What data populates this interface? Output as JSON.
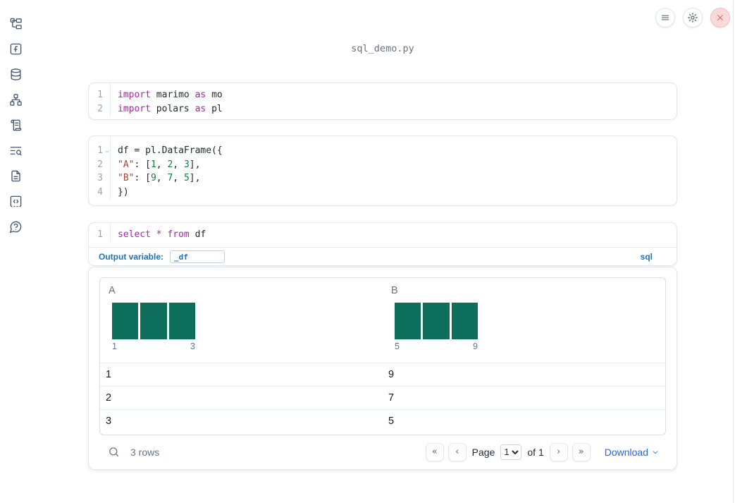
{
  "title": "sql_demo.py",
  "colors": {
    "keyword": "#a626a4",
    "string": "#a94432",
    "number": "#15803d",
    "histogram_bar": "#0e6e5c",
    "accent_blue": "#2270b8",
    "link_blue": "#2563eb"
  },
  "sidebar": {
    "items": [
      {
        "name": "file-explorer",
        "icon": "file-tree-icon"
      },
      {
        "name": "variables",
        "icon": "function-square-icon"
      },
      {
        "name": "datasources",
        "icon": "database-icon"
      },
      {
        "name": "dependencies",
        "icon": "network-graph-icon"
      },
      {
        "name": "logs",
        "icon": "scroll-icon"
      },
      {
        "name": "outline-search",
        "icon": "text-search-icon"
      },
      {
        "name": "documentation",
        "icon": "file-text-icon"
      },
      {
        "name": "snippets",
        "icon": "code-square-icon"
      },
      {
        "name": "help",
        "icon": "help-bubble-icon"
      }
    ]
  },
  "header_controls": [
    {
      "name": "menu",
      "icon": "hamburger-icon"
    },
    {
      "name": "settings",
      "icon": "gear-icon"
    },
    {
      "name": "shutdown",
      "icon": "close-x-icon"
    }
  ],
  "cells": [
    {
      "name": "cell-imports",
      "lines": [
        {
          "n": "1",
          "tokens": [
            [
              "kw",
              "import"
            ],
            [
              "pl",
              " marimo "
            ],
            [
              "kw",
              "as"
            ],
            [
              "pl",
              " mo"
            ]
          ]
        },
        {
          "n": "2",
          "tokens": [
            [
              "kw",
              "import"
            ],
            [
              "pl",
              " polars "
            ],
            [
              "kw",
              "as"
            ],
            [
              "pl",
              " pl"
            ]
          ]
        }
      ]
    },
    {
      "name": "cell-dataframe",
      "lines": [
        {
          "n": "1",
          "fold": true,
          "tokens": [
            [
              "pl",
              "df = pl.DataFrame({"
            ]
          ]
        },
        {
          "n": "2",
          "tokens": [
            [
              "pl",
              "    "
            ],
            [
              "str",
              "\"A\""
            ],
            [
              "pl",
              ": ["
            ],
            [
              "num",
              "1"
            ],
            [
              "pl",
              ", "
            ],
            [
              "num",
              "2"
            ],
            [
              "pl",
              ", "
            ],
            [
              "num",
              "3"
            ],
            [
              "pl",
              "],"
            ]
          ]
        },
        {
          "n": "3",
          "tokens": [
            [
              "pl",
              "    "
            ],
            [
              "str",
              "\"B\""
            ],
            [
              "pl",
              ": ["
            ],
            [
              "num",
              "9"
            ],
            [
              "pl",
              ", "
            ],
            [
              "num",
              "7"
            ],
            [
              "pl",
              ", "
            ],
            [
              "num",
              "5"
            ],
            [
              "pl",
              "],"
            ]
          ]
        },
        {
          "n": "4",
          "tokens": [
            [
              "pl",
              "})"
            ]
          ]
        }
      ]
    },
    {
      "name": "cell-sql",
      "lines": [
        {
          "n": "1",
          "tokens": [
            [
              "kw",
              "select"
            ],
            [
              "pl",
              " "
            ],
            [
              "kw",
              "*"
            ],
            [
              "pl",
              " "
            ],
            [
              "kw",
              "from"
            ],
            [
              "pl",
              " df"
            ]
          ]
        }
      ],
      "output_bar": {
        "label": "Output variable:",
        "value": "_df",
        "language": "sql"
      }
    }
  ],
  "table": {
    "columns": [
      {
        "name": "A",
        "summary": {
          "bars": [
            1,
            1,
            1
          ],
          "min": "1",
          "max": "3"
        }
      },
      {
        "name": "B",
        "summary": {
          "bars": [
            1,
            1,
            1
          ],
          "min": "5",
          "max": "9"
        }
      }
    ],
    "rows": [
      [
        "1",
        "9"
      ],
      [
        "2",
        "7"
      ],
      [
        "3",
        "5"
      ]
    ],
    "footer": {
      "rows_label": "3 rows",
      "page_label": "Page",
      "page_options": [
        "1"
      ],
      "page_value": "1",
      "of_label": "of 1",
      "download_label": "Download"
    }
  }
}
